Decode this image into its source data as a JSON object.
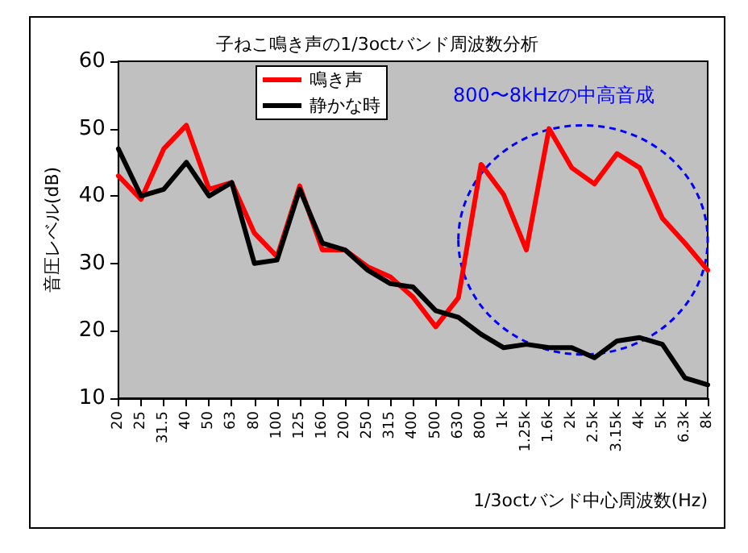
{
  "chart_data": {
    "type": "line",
    "title": "子ねこ鳴き声の1/3octバンド周波数分析",
    "xlabel": "1/3octバンド中心周波数(Hz)",
    "ylabel": "音圧レベル(dB)",
    "categories": [
      "20",
      "25",
      "31.5",
      "40",
      "50",
      "63",
      "80",
      "100",
      "125",
      "160",
      "200",
      "250",
      "315",
      "400",
      "500",
      "630",
      "800",
      "1k",
      "1.25k",
      "1.6k",
      "2k",
      "2.5k",
      "3.15k",
      "4k",
      "5k",
      "6.3k",
      "8k"
    ],
    "series": [
      {
        "name": "鳴き声",
        "color": "#ff0000",
        "values": [
          43,
          39.5,
          47,
          50.5,
          41,
          42,
          34.5,
          31,
          41.5,
          32,
          32,
          29.5,
          28,
          25,
          20.6,
          24.9,
          44.7,
          40.2,
          32,
          50,
          44.2,
          41.8,
          46.3,
          44.2,
          36.7,
          33,
          29
        ]
      },
      {
        "name": "静かな時",
        "color": "#000000",
        "values": [
          47,
          40,
          41,
          45,
          40,
          42,
          30,
          30.5,
          41,
          33,
          32,
          29,
          27,
          26.5,
          23,
          22,
          19.5,
          17.5,
          18,
          17.5,
          17.5,
          16,
          18.5,
          19,
          18,
          13,
          12
        ]
      }
    ],
    "ylim": [
      10,
      60
    ],
    "yticks": [
      10,
      20,
      30,
      40,
      50,
      60
    ],
    "grid": false,
    "legend": "top",
    "marker": "none",
    "line_style": "solid",
    "annotations": [
      "800〜8kHzの中高音成"
    ]
  }
}
